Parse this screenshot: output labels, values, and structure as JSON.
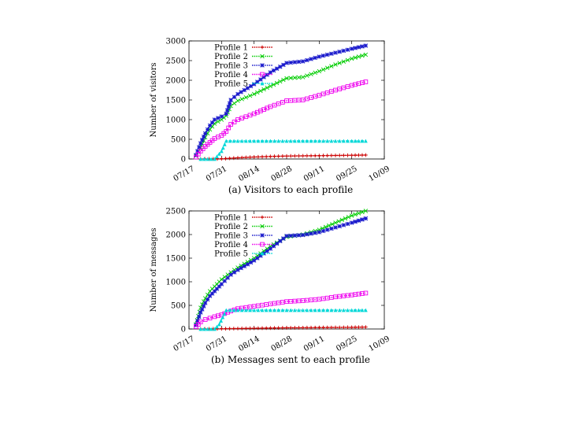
{
  "chart_data": [
    {
      "type": "line",
      "title": "",
      "caption": "(a) Visitors to each profile",
      "xlabel": "",
      "ylabel": "Number of visitors",
      "x_ticks": [
        "07/17",
        "07/31",
        "08/14",
        "08/28",
        "09/11",
        "09/25",
        "10/09"
      ],
      "xlim": [
        "07/17",
        "10/09"
      ],
      "ylim": [
        0,
        3000
      ],
      "y_ticks": [
        0,
        500,
        1000,
        1500,
        2000,
        2500,
        3000
      ],
      "grid": false,
      "legend_position": "top-left",
      "series": [
        {
          "name": "Profile 1",
          "color": "#cc0000",
          "marker": "plus",
          "points": [
            [
              "07/22",
              0
            ],
            [
              "07/31",
              5
            ],
            [
              "08/07",
              30
            ],
            [
              "08/14",
              50
            ],
            [
              "08/21",
              65
            ],
            [
              "08/28",
              75
            ],
            [
              "09/04",
              80
            ],
            [
              "09/11",
              85
            ],
            [
              "09/18",
              90
            ],
            [
              "09/25",
              95
            ],
            [
              "10/01",
              100
            ]
          ]
        },
        {
          "name": "Profile 2",
          "color": "#00cc00",
          "marker": "x",
          "points": [
            [
              "07/20",
              80
            ],
            [
              "07/22",
              300
            ],
            [
              "07/24",
              550
            ],
            [
              "07/26",
              750
            ],
            [
              "07/28",
              900
            ],
            [
              "07/31",
              1000
            ],
            [
              "08/02",
              1100
            ],
            [
              "08/04",
              1350
            ],
            [
              "08/07",
              1480
            ],
            [
              "08/14",
              1650
            ],
            [
              "08/21",
              1850
            ],
            [
              "08/28",
              2050
            ],
            [
              "09/04",
              2080
            ],
            [
              "09/11",
              2230
            ],
            [
              "09/18",
              2400
            ],
            [
              "09/25",
              2550
            ],
            [
              "10/01",
              2650
            ]
          ]
        },
        {
          "name": "Profile 3",
          "color": "#1a1acc",
          "marker": "star",
          "points": [
            [
              "07/20",
              100
            ],
            [
              "07/22",
              400
            ],
            [
              "07/24",
              650
            ],
            [
              "07/26",
              850
            ],
            [
              "07/28",
              1000
            ],
            [
              "07/31",
              1080
            ],
            [
              "08/02",
              1150
            ],
            [
              "08/04",
              1500
            ],
            [
              "08/07",
              1650
            ],
            [
              "08/14",
              1900
            ],
            [
              "08/21",
              2200
            ],
            [
              "08/28",
              2440
            ],
            [
              "09/04",
              2480
            ],
            [
              "09/11",
              2600
            ],
            [
              "09/18",
              2700
            ],
            [
              "09/25",
              2800
            ],
            [
              "10/01",
              2880
            ]
          ]
        },
        {
          "name": "Profile 4",
          "color": "#ee00ee",
          "marker": "square",
          "points": [
            [
              "07/20",
              50
            ],
            [
              "07/22",
              200
            ],
            [
              "07/24",
              320
            ],
            [
              "07/26",
              420
            ],
            [
              "07/28",
              520
            ],
            [
              "07/31",
              600
            ],
            [
              "08/02",
              700
            ],
            [
              "08/04",
              880
            ],
            [
              "08/07",
              1000
            ],
            [
              "08/14",
              1150
            ],
            [
              "08/21",
              1330
            ],
            [
              "08/28",
              1480
            ],
            [
              "09/04",
              1500
            ],
            [
              "09/11",
              1620
            ],
            [
              "09/18",
              1750
            ],
            [
              "09/25",
              1870
            ],
            [
              "10/01",
              1960
            ]
          ]
        },
        {
          "name": "Profile 5",
          "color": "#00d8d8",
          "marker": "triangle",
          "points": [
            [
              "07/22",
              0
            ],
            [
              "07/28",
              0
            ],
            [
              "07/31",
              200
            ],
            [
              "08/02",
              460
            ],
            [
              "08/07",
              460
            ],
            [
              "08/14",
              460
            ],
            [
              "08/28",
              460
            ],
            [
              "09/11",
              460
            ],
            [
              "09/25",
              460
            ],
            [
              "10/01",
              460
            ]
          ]
        }
      ]
    },
    {
      "type": "line",
      "title": "",
      "caption": "(b) Messages sent to each profile",
      "xlabel": "",
      "ylabel": "Number of messages",
      "x_ticks": [
        "07/17",
        "07/31",
        "08/14",
        "08/28",
        "09/11",
        "09/25",
        "10/09"
      ],
      "xlim": [
        "07/17",
        "10/09"
      ],
      "ylim": [
        0,
        2500
      ],
      "y_ticks": [
        0,
        500,
        1000,
        1500,
        2000,
        2500
      ],
      "grid": false,
      "legend_position": "top-left",
      "series": [
        {
          "name": "Profile 1",
          "color": "#cc0000",
          "marker": "plus",
          "points": [
            [
              "07/22",
              0
            ],
            [
              "07/31",
              5
            ],
            [
              "08/14",
              15
            ],
            [
              "08/28",
              25
            ],
            [
              "09/11",
              30
            ],
            [
              "09/25",
              35
            ],
            [
              "10/01",
              40
            ]
          ]
        },
        {
          "name": "Profile 2",
          "color": "#00cc00",
          "marker": "x",
          "points": [
            [
              "07/20",
              100
            ],
            [
              "07/22",
              450
            ],
            [
              "07/24",
              650
            ],
            [
              "07/26",
              800
            ],
            [
              "07/28",
              900
            ],
            [
              "07/31",
              1050
            ],
            [
              "08/04",
              1200
            ],
            [
              "08/07",
              1300
            ],
            [
              "08/14",
              1500
            ],
            [
              "08/21",
              1750
            ],
            [
              "08/28",
              1950
            ],
            [
              "09/04",
              2000
            ],
            [
              "09/11",
              2100
            ],
            [
              "09/18",
              2250
            ],
            [
              "09/25",
              2400
            ],
            [
              "10/01",
              2500
            ]
          ]
        },
        {
          "name": "Profile 3",
          "color": "#1a1acc",
          "marker": "star",
          "points": [
            [
              "07/20",
              80
            ],
            [
              "07/22",
              350
            ],
            [
              "07/24",
              550
            ],
            [
              "07/26",
              700
            ],
            [
              "07/28",
              800
            ],
            [
              "07/31",
              950
            ],
            [
              "08/04",
              1150
            ],
            [
              "08/07",
              1250
            ],
            [
              "08/14",
              1450
            ],
            [
              "08/21",
              1700
            ],
            [
              "08/28",
              1970
            ],
            [
              "09/04",
              1990
            ],
            [
              "09/11",
              2050
            ],
            [
              "09/18",
              2150
            ],
            [
              "09/25",
              2250
            ],
            [
              "10/01",
              2340
            ]
          ]
        },
        {
          "name": "Profile 4",
          "color": "#ee00ee",
          "marker": "square",
          "points": [
            [
              "07/20",
              50
            ],
            [
              "07/22",
              150
            ],
            [
              "07/24",
              200
            ],
            [
              "07/28",
              260
            ],
            [
              "07/31",
              300
            ],
            [
              "08/04",
              380
            ],
            [
              "08/07",
              430
            ],
            [
              "08/14",
              480
            ],
            [
              "08/21",
              530
            ],
            [
              "08/28",
              580
            ],
            [
              "09/04",
              600
            ],
            [
              "09/11",
              630
            ],
            [
              "09/18",
              680
            ],
            [
              "09/25",
              720
            ],
            [
              "10/01",
              760
            ]
          ]
        },
        {
          "name": "Profile 5",
          "color": "#00d8d8",
          "marker": "triangle",
          "points": [
            [
              "07/22",
              0
            ],
            [
              "07/28",
              0
            ],
            [
              "07/30",
              100
            ],
            [
              "08/02",
              400
            ],
            [
              "08/07",
              400
            ],
            [
              "08/14",
              400
            ],
            [
              "08/28",
              400
            ],
            [
              "09/11",
              400
            ],
            [
              "09/25",
              400
            ],
            [
              "10/01",
              400
            ]
          ]
        }
      ]
    }
  ]
}
